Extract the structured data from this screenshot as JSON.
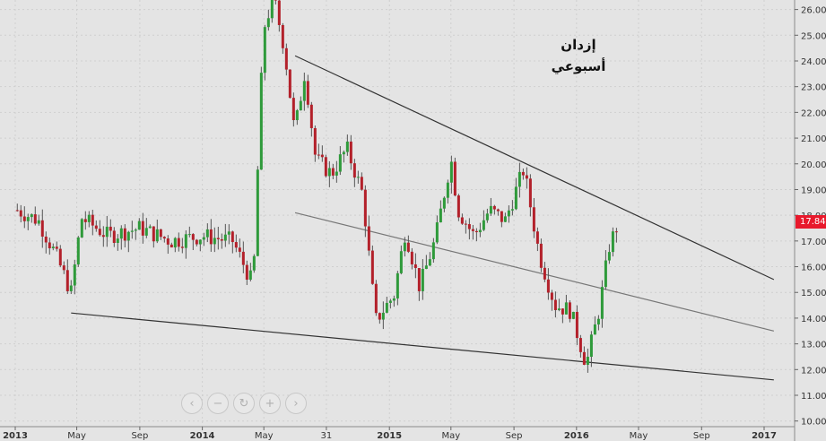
{
  "annotation": {
    "line1": "إزدان",
    "line2": "أسبوعي"
  },
  "last_price_label": "17.84",
  "colors": {
    "up": "#2e9a3a",
    "down": "#b3202a",
    "background": "#e4e4e4",
    "grid": "#cfcfcf",
    "price_tag": "#e8192c"
  },
  "nav_buttons": [
    {
      "name": "scroll-left-icon",
      "glyph": "‹"
    },
    {
      "name": "zoom-out-icon",
      "glyph": "−"
    },
    {
      "name": "reset-icon",
      "glyph": "↻"
    },
    {
      "name": "zoom-in-icon",
      "glyph": "+"
    },
    {
      "name": "scroll-right-icon",
      "glyph": "›"
    }
  ],
  "chart_data": {
    "type": "candlestick",
    "timeframe": "weekly",
    "x_ticks": [
      "2013",
      "May",
      "Sep",
      "2014",
      "May",
      "31",
      "2015",
      "May",
      "Sep",
      "2016",
      "May",
      "Sep",
      "2017"
    ],
    "x_tick_dates": [
      "2013-01-01",
      "2013-05-01",
      "2013-09-01",
      "2014-01-01",
      "2014-05-01",
      "2014-08-31",
      "2015-01-01",
      "2015-05-01",
      "2015-09-01",
      "2016-01-01",
      "2016-05-01",
      "2016-09-01",
      "2017-01-01"
    ],
    "y_ticks": [
      "10.00",
      "11.00",
      "12.00",
      "13.00",
      "14.00",
      "15.00",
      "16.00",
      "17.00",
      "18.00",
      "19.00",
      "20.00",
      "21.00",
      "22.00",
      "23.00",
      "24.00",
      "25.00",
      "26.00"
    ],
    "ylim": [
      9.85,
      26.3
    ],
    "last_price": 17.84,
    "trendlines": [
      {
        "name": "upper-resistance",
        "from": {
          "date": "2014-07-01",
          "price": 24.2
        },
        "to": {
          "date": "2017-01-20",
          "price": 15.5
        }
      },
      {
        "name": "middle-channel",
        "from": {
          "date": "2014-07-01",
          "price": 18.1
        },
        "to": {
          "date": "2017-01-20",
          "price": 13.5
        }
      },
      {
        "name": "lower-support",
        "from": {
          "date": "2013-04-20",
          "price": 14.2
        },
        "to": {
          "date": "2017-01-20",
          "price": 11.6
        }
      }
    ],
    "key_points": [
      {
        "date": "2013-01-05",
        "close": 18.2
      },
      {
        "date": "2013-02-15",
        "close": 17.8
      },
      {
        "date": "2013-03-20",
        "close": 16.5
      },
      {
        "date": "2013-04-20",
        "close": 15.0
      },
      {
        "date": "2013-05-10",
        "close": 17.9
      },
      {
        "date": "2013-07-01",
        "close": 17.2
      },
      {
        "date": "2013-09-01",
        "close": 17.5
      },
      {
        "date": "2013-11-01",
        "close": 17.0
      },
      {
        "date": "2014-01-01",
        "close": 17.2
      },
      {
        "date": "2014-03-01",
        "close": 17.0
      },
      {
        "date": "2014-04-10",
        "close": 15.3
      },
      {
        "date": "2014-04-30",
        "close": 25.2
      },
      {
        "date": "2014-05-20",
        "close": 26.5
      },
      {
        "date": "2014-06-10",
        "close": 24.5
      },
      {
        "date": "2014-06-30",
        "close": 21.2
      },
      {
        "date": "2014-07-20",
        "close": 23.6
      },
      {
        "date": "2014-08-10",
        "close": 20.2
      },
      {
        "date": "2014-09-10",
        "close": 19.6
      },
      {
        "date": "2014-10-10",
        "close": 20.6
      },
      {
        "date": "2014-11-10",
        "close": 18.8
      },
      {
        "date": "2014-12-05",
        "close": 13.9
      },
      {
        "date": "2015-01-10",
        "close": 14.9
      },
      {
        "date": "2015-02-01",
        "close": 17.4
      },
      {
        "date": "2015-03-01",
        "close": 15.2
      },
      {
        "date": "2015-04-01",
        "close": 17.1
      },
      {
        "date": "2015-05-01",
        "close": 20.2
      },
      {
        "date": "2015-05-15",
        "close": 18.2
      },
      {
        "date": "2015-06-15",
        "close": 17.2
      },
      {
        "date": "2015-07-15",
        "close": 18.2
      },
      {
        "date": "2015-08-15",
        "close": 17.8
      },
      {
        "date": "2015-09-20",
        "close": 19.8
      },
      {
        "date": "2015-10-20",
        "close": 16.5
      },
      {
        "date": "2015-11-20",
        "close": 14.5
      },
      {
        "date": "2015-12-20",
        "close": 14.3
      },
      {
        "date": "2016-01-20",
        "close": 12.2
      },
      {
        "date": "2016-02-15",
        "close": 14.4
      },
      {
        "date": "2016-03-05",
        "close": 16.8
      },
      {
        "date": "2016-03-25",
        "close": 17.84
      }
    ]
  }
}
